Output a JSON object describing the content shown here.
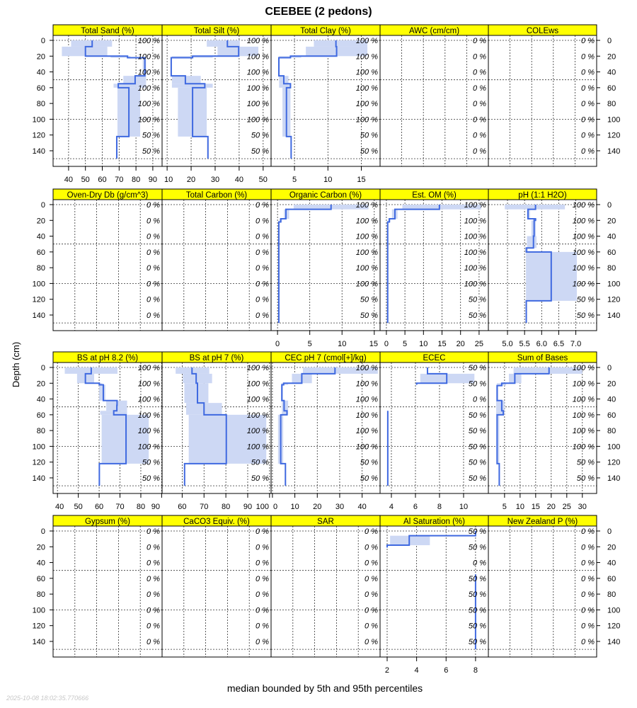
{
  "title": "CEEBEE (2 pedons)",
  "ylabel": "Depth (cm)",
  "xlabel": "median bounded by 5th and 95th percentiles",
  "timestamp": "2025-10-08 18:02:35.770666",
  "colors": {
    "median_line": "#3f69e0",
    "band": "#cdd8f4",
    "strip": "#ffff00"
  },
  "chart_data": {
    "type": "line",
    "description_type": "depth profile panels (step lines with percentile bands)",
    "depth_ticks": [
      0,
      20,
      40,
      60,
      80,
      100,
      120,
      140
    ],
    "depth_grid": [
      0,
      50,
      100,
      150
    ],
    "ylim": [
      160,
      -6
    ],
    "panels": [
      {
        "title": "Total Sand (%)",
        "xlim": [
          30.8,
          95.5
        ],
        "ticks": [
          40,
          50,
          60,
          70,
          80,
          90
        ],
        "pct": [
          "100 %",
          "100 %",
          "100 %",
          "100 %",
          "100 %",
          "100 %",
          "50 %",
          "50 %"
        ],
        "segments": [
          [
            0,
            8,
            41.5,
            54,
            65.8
          ],
          [
            8,
            20,
            36,
            50,
            63
          ],
          [
            20,
            22,
            65,
            75,
            76.7
          ],
          [
            22,
            45,
            84,
            85.3,
            86
          ],
          [
            45,
            55,
            72.5,
            79.5,
            86
          ],
          [
            55,
            60,
            66.7,
            69.5,
            86
          ],
          [
            60,
            122,
            69,
            75.8,
            82.5
          ],
          [
            122,
            150,
            68.6,
            68.6,
            68.6
          ]
        ]
      },
      {
        "title": "Total Silt (%)",
        "xlim": [
          7.9,
          53.3
        ],
        "ticks": [
          10,
          20,
          30,
          40,
          50
        ],
        "pct": [
          "100 %",
          "100 %",
          "100 %",
          "100 %",
          "100 %",
          "100 %",
          "50 %",
          "50 %"
        ],
        "segments": [
          [
            0,
            8,
            26.5,
            35.1,
            40.3
          ],
          [
            8,
            20,
            31,
            39.8,
            48
          ],
          [
            20,
            22,
            12,
            20.6,
            29
          ],
          [
            22,
            45,
            11.5,
            11.7,
            12
          ],
          [
            45,
            55,
            12,
            17.6,
            24
          ],
          [
            55,
            60,
            12,
            25.7,
            29
          ],
          [
            60,
            122,
            14.5,
            20.6,
            26.5
          ],
          [
            122,
            150,
            27,
            27,
            27
          ]
        ]
      },
      {
        "title": "Total Clay (%)",
        "xlim": [
          1.5,
          17.8
        ],
        "ticks": [
          5,
          10,
          15
        ],
        "pct": [
          "100 %",
          "100 %",
          "100 %",
          "100 %",
          "100 %",
          "100 %",
          "50 %",
          "50 %"
        ],
        "segments": [
          [
            0,
            8,
            7.9,
            11.2,
            15.9
          ],
          [
            8,
            20,
            6.7,
            11.3,
            15.9
          ],
          [
            20,
            22,
            2.7,
            4.4,
            6
          ],
          [
            22,
            45,
            2.6,
            2.66,
            2.8
          ],
          [
            45,
            55,
            2.7,
            3.4,
            4.1
          ],
          [
            55,
            60,
            2.7,
            4.4,
            4.4
          ],
          [
            60,
            122,
            3.2,
            3.8,
            4.4
          ],
          [
            122,
            150,
            4.5,
            4.5,
            4.5
          ]
        ]
      },
      {
        "title": "AWC (cm/cm)",
        "xlim": [
          0,
          1
        ],
        "ticks": [],
        "pct": [
          "0 %",
          "0 %",
          "0 %",
          "0 %",
          "0 %",
          "0 %",
          "0 %",
          "0 %"
        ],
        "segments": []
      },
      {
        "title": "COLEws",
        "xlim": [
          0,
          1
        ],
        "ticks": [],
        "pct": [
          "0 %",
          "0 %",
          "0 %",
          "0 %",
          "0 %",
          "0 %",
          "0 %",
          "0 %"
        ],
        "segments": []
      },
      {
        "title": "Oven-Dry Db (g/cm^3)",
        "xlim": [
          0,
          1
        ],
        "ticks": [],
        "pct": [
          "0 %",
          "0 %",
          "0 %",
          "0 %",
          "0 %",
          "0 %",
          "0 %",
          "0 %"
        ],
        "segments": []
      },
      {
        "title": "Total Carbon (%)",
        "xlim": [
          0,
          1
        ],
        "ticks": [],
        "pct": [
          "0 %",
          "0 %",
          "0 %",
          "0 %",
          "0 %",
          "0 %",
          "0 %",
          "0 %"
        ],
        "segments": []
      },
      {
        "title": "Organic Carbon (%)",
        "xlim": [
          -1,
          15.9
        ],
        "ticks": [
          0,
          5,
          10,
          15
        ],
        "pct": [
          "100 %",
          "100 %",
          "100 %",
          "100 %",
          "100 %",
          "100 %",
          "50 %",
          "50 %"
        ],
        "segments": [
          [
            0,
            6,
            2.5,
            8.3,
            14.1
          ],
          [
            6,
            18,
            1.0,
            1.3,
            1.8
          ],
          [
            18,
            22,
            0.3,
            0.5,
            0.7
          ],
          [
            22,
            150,
            0.1,
            0.2,
            0.3
          ]
        ]
      },
      {
        "title": "Est. OM (%)",
        "xlim": [
          -1.7,
          27.5
        ],
        "ticks": [
          0,
          5,
          10,
          15,
          20,
          25
        ],
        "pct": [
          "100 %",
          "100 %",
          "100 %",
          "100 %",
          "100 %",
          "100 %",
          "50 %",
          "50 %"
        ],
        "segments": [
          [
            0,
            6,
            4.3,
            14.3,
            25.6
          ],
          [
            6,
            18,
            1.5,
            2.3,
            3
          ],
          [
            18,
            22,
            0.5,
            0.8,
            1.1
          ],
          [
            22,
            150,
            0.2,
            0.35,
            0.5
          ]
        ]
      },
      {
        "title": "pH (1:1 H2O)",
        "xlim": [
          4.44,
          7.61
        ],
        "ticks": [
          5.0,
          5.5,
          6.0,
          6.5,
          7.0
        ],
        "pct": [
          "100 %",
          "100 %",
          "100 %",
          "100 %",
          "100 %",
          "100 %",
          "50 %",
          "50 %"
        ],
        "segments": [
          [
            0,
            6,
            4.92,
            5.82,
            6.68
          ],
          [
            6,
            18,
            5.57,
            5.6,
            5.66
          ],
          [
            18,
            20,
            5.75,
            5.82,
            5.85
          ],
          [
            20,
            40,
            5.7,
            5.78,
            5.83
          ],
          [
            40,
            55,
            5.57,
            5.76,
            5.85
          ],
          [
            55,
            60,
            5.55,
            5.55,
            5.6
          ],
          [
            60,
            122,
            5.54,
            6.28,
            7.03
          ],
          [
            122,
            150,
            5.55,
            5.55,
            5.55
          ]
        ]
      },
      {
        "title": "BS at pH 8.2 (%)",
        "xlim": [
          37.9,
          90.2
        ],
        "ticks": [
          40,
          50,
          60,
          70,
          80,
          90
        ],
        "pct": [
          "100 %",
          "100 %",
          "100 %",
          "100 %",
          "100 %",
          "100 %",
          "50 %",
          "50 %"
        ],
        "segments": [
          [
            0,
            8,
            43.5,
            56.2,
            68.8
          ],
          [
            8,
            20,
            49.4,
            53.4,
            57.6
          ],
          [
            20,
            22,
            59.5,
            60.1,
            61.5
          ],
          [
            22,
            42,
            60,
            62,
            63
          ],
          [
            42,
            48,
            63.4,
            68.6,
            73.4
          ],
          [
            48,
            55,
            63.4,
            68.5,
            73.4
          ],
          [
            55,
            60,
            60.5,
            67,
            73.4
          ],
          [
            60,
            122,
            61.2,
            72.9,
            83.8
          ],
          [
            122,
            150,
            60.1,
            60.1,
            60.1
          ]
        ]
      },
      {
        "title": "BS at pH 7 (%)",
        "xlim": [
          50.8,
          100.7
        ],
        "ticks": [
          60,
          70,
          80,
          90,
          100
        ],
        "pct": [
          "100 %",
          "100 %",
          "100 %",
          "100 %",
          "100 %",
          "100 %",
          "50 %",
          "50 %"
        ],
        "segments": [
          [
            0,
            8,
            57,
            64.5,
            72.4
          ],
          [
            8,
            20,
            60.3,
            66.4,
            73.7
          ],
          [
            20,
            45,
            61,
            67,
            72
          ],
          [
            45,
            60,
            61.8,
            70,
            78.2
          ],
          [
            60,
            122,
            63,
            80.2,
            98.5
          ],
          [
            122,
            150,
            61.1,
            61.1,
            61.1
          ]
        ]
      },
      {
        "title": "CEC pH 7 (cmol[+]/kg)",
        "xlim": [
          -0.6,
          48
        ],
        "ticks": [
          0,
          10,
          20,
          30,
          40
        ],
        "pct": [
          "100 %",
          "100 %",
          "100 %",
          "100 %",
          "100 %",
          "100 %",
          "50 %",
          "50 %"
        ],
        "segments": [
          [
            0,
            8,
            13.6,
            27.9,
            47
          ],
          [
            8,
            20,
            8.7,
            13.1,
            17.6
          ],
          [
            20,
            22,
            4,
            5,
            7
          ],
          [
            22,
            42,
            3.9,
            4.2,
            4.7
          ],
          [
            42,
            55,
            4.2,
            5.2,
            7
          ],
          [
            55,
            60,
            4.2,
            6.5,
            7
          ],
          [
            60,
            122,
            2.5,
            3.7,
            4.8
          ],
          [
            122,
            150,
            5.8,
            5.8,
            5.8
          ]
        ]
      },
      {
        "title": "ECEC",
        "xlim": [
          3.06,
          12.06
        ],
        "ticks": [
          4,
          6,
          8,
          10
        ],
        "pct": [
          "50 %",
          "50 %",
          "0 %",
          "50 %",
          "50 %",
          "50 %",
          "50 %",
          "50 %"
        ],
        "segments": [
          [
            0,
            8,
            7.0,
            7.0,
            7.0
          ],
          [
            8,
            20,
            6.4,
            8.6,
            10.9
          ],
          [
            20,
            22,
            6.1,
            6.1,
            6.1
          ],
          [
            22,
            55,
            null,
            null,
            null
          ],
          [
            55,
            150,
            3.7,
            3.7,
            3.7
          ]
        ]
      },
      {
        "title": "Sum of Bases",
        "xlim": [
          -0.2,
          34.6
        ],
        "ticks": [
          5,
          10,
          15,
          20,
          25,
          30
        ],
        "pct": [
          "100 %",
          "100 %",
          "100 %",
          "100 %",
          "100 %",
          "100 %",
          "50 %",
          "50 %"
        ],
        "segments": [
          [
            0,
            8,
            7.9,
            19.3,
            30
          ],
          [
            8,
            20,
            6.4,
            8.3,
            10.4
          ],
          [
            20,
            23,
            2.5,
            4.1,
            5.5
          ],
          [
            23,
            42,
            2.5,
            2.6,
            3
          ],
          [
            42,
            55,
            2.3,
            4.1,
            5
          ],
          [
            55,
            60,
            2.3,
            4.6,
            5
          ],
          [
            60,
            122,
            2.4,
            2.6,
            3.3
          ],
          [
            122,
            150,
            3.3,
            3.3,
            3.3
          ]
        ]
      },
      {
        "title": "Gypsum (%)",
        "xlim": [
          0,
          1
        ],
        "ticks": [],
        "pct": [
          "0 %",
          "0 %",
          "0 %",
          "0 %",
          "0 %",
          "0 %",
          "0 %",
          "0 %"
        ],
        "segments": []
      },
      {
        "title": "CaCO3 Equiv. (%)",
        "xlim": [
          0,
          1
        ],
        "ticks": [],
        "pct": [
          "0 %",
          "0 %",
          "0 %",
          "0 %",
          "0 %",
          "0 %",
          "0 %",
          "0 %"
        ],
        "segments": []
      },
      {
        "title": "SAR",
        "xlim": [
          0,
          1
        ],
        "ticks": [],
        "pct": [
          "0 %",
          "0 %",
          "0 %",
          "0 %",
          "0 %",
          "0 %",
          "0 %",
          "0 %"
        ],
        "segments": []
      },
      {
        "title": "Al Saturation (%)",
        "xlim": [
          1.52,
          8.87
        ],
        "ticks": [
          2,
          4,
          6,
          8
        ],
        "pct": [
          "50 %",
          "50 %",
          "0 %",
          "50 %",
          "50 %",
          "50 %",
          "50 %",
          "50 %"
        ],
        "segments": [
          [
            0,
            6,
            8,
            8,
            8
          ],
          [
            6,
            18,
            2.2,
            3.5,
            4.9
          ],
          [
            18,
            21,
            2.0,
            2.0,
            2.0
          ],
          [
            21,
            55,
            null,
            null,
            null
          ],
          [
            55,
            150,
            8,
            8,
            8
          ]
        ]
      },
      {
        "title": "New Zealand P (%)",
        "xlim": [
          0,
          1
        ],
        "ticks": [],
        "pct": [
          "0 %",
          "0 %",
          "0 %",
          "0 %",
          "0 %",
          "0 %",
          "0 %",
          "0 %"
        ],
        "segments": []
      }
    ]
  }
}
